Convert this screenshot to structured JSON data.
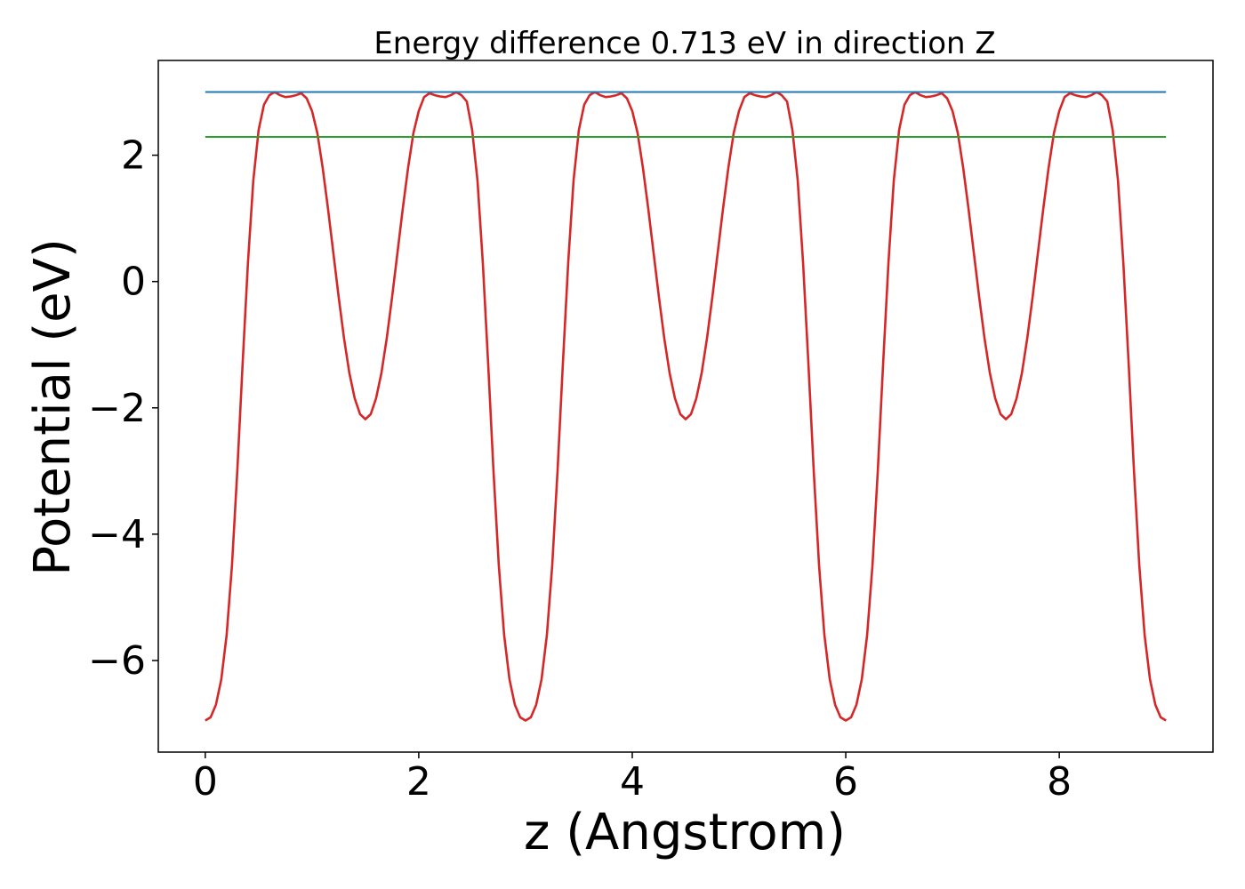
{
  "chart_data": {
    "type": "line",
    "title": "Energy difference 0.713 eV in direction Z",
    "xlabel": "z (Angstrom)",
    "ylabel": "Potential (eV)",
    "xlim": [
      -0.44,
      9.44
    ],
    "ylim": [
      -7.45,
      3.5
    ],
    "xticks": [
      0,
      2,
      4,
      6,
      8
    ],
    "yticks": [
      -6,
      -4,
      -2,
      0,
      2
    ],
    "xtick_labels": [
      "0",
      "2",
      "4",
      "6",
      "8"
    ],
    "ytick_labels": [
      "−6",
      "−4",
      "−2",
      "0",
      "2"
    ],
    "grid": false,
    "legend": "none",
    "series": [
      {
        "color": "#d62728",
        "x": [
          0,
          0.05,
          0.1,
          0.15,
          0.2,
          0.25,
          0.3,
          0.35,
          0.4,
          0.45,
          0.5,
          0.55,
          0.6,
          0.65,
          0.7,
          0.75,
          0.8,
          0.85,
          0.9,
          0.95,
          1.0,
          1.05,
          1.1,
          1.15,
          1.2,
          1.25,
          1.3,
          1.35,
          1.4,
          1.45,
          1.5,
          1.55,
          1.6,
          1.65,
          1.7,
          1.75,
          1.8,
          1.85,
          1.9,
          1.95,
          2.0,
          2.05,
          2.1,
          2.15,
          2.2,
          2.25,
          2.3,
          2.35,
          2.4,
          2.45,
          2.5,
          2.55,
          2.6,
          2.65,
          2.7,
          2.75,
          2.8,
          2.85,
          2.9,
          2.95,
          3.0,
          3.05,
          3.1,
          3.15,
          3.2,
          3.25,
          3.3,
          3.35,
          3.4,
          3.45,
          3.5,
          3.55,
          3.6,
          3.65,
          3.7,
          3.75,
          3.8,
          3.85,
          3.9,
          3.95,
          4.0,
          4.05,
          4.1,
          4.15,
          4.2,
          4.25,
          4.3,
          4.35,
          4.4,
          4.45,
          4.5,
          4.55,
          4.6,
          4.65,
          4.7,
          4.75,
          4.8,
          4.85,
          4.9,
          4.95,
          5.0,
          5.05,
          5.1,
          5.15,
          5.2,
          5.25,
          5.3,
          5.35,
          5.4,
          5.45,
          5.5,
          5.55,
          5.6,
          5.65,
          5.7,
          5.75,
          5.8,
          5.85,
          5.9,
          5.95,
          6.0,
          6.05,
          6.1,
          6.15,
          6.2,
          6.25,
          6.3,
          6.35,
          6.4,
          6.45,
          6.5,
          6.55,
          6.6,
          6.65,
          6.7,
          6.75,
          6.8,
          6.85,
          6.9,
          6.95,
          7.0,
          7.05,
          7.1,
          7.15,
          7.2,
          7.25,
          7.3,
          7.35,
          7.4,
          7.45,
          7.5,
          7.55,
          7.6,
          7.65,
          7.7,
          7.75,
          7.8,
          7.85,
          7.9,
          7.95,
          8.0,
          8.05,
          8.1,
          8.15,
          8.2,
          8.25,
          8.3,
          8.35,
          8.4,
          8.45,
          8.5,
          8.55,
          8.6,
          8.65,
          8.7,
          8.75,
          8.8,
          8.85,
          8.9,
          8.95,
          9.0
        ],
        "values": [
          -6.95,
          -6.9,
          -6.7,
          -6.3,
          -5.6,
          -4.5,
          -3.0,
          -1.3,
          0.3,
          1.6,
          2.4,
          2.8,
          2.95,
          3.0,
          2.95,
          2.92,
          2.93,
          2.95,
          2.98,
          2.9,
          2.7,
          2.35,
          1.8,
          1.15,
          0.45,
          -0.25,
          -0.9,
          -1.45,
          -1.85,
          -2.1,
          -2.18,
          -2.1,
          -1.85,
          -1.45,
          -0.9,
          -0.25,
          0.45,
          1.15,
          1.8,
          2.35,
          2.7,
          2.92,
          2.98,
          2.95,
          2.93,
          2.92,
          2.95,
          3.0,
          2.95,
          2.85,
          2.4,
          1.6,
          0.3,
          -1.3,
          -3.0,
          -4.5,
          -5.6,
          -6.3,
          -6.7,
          -6.9,
          -6.95,
          -6.9,
          -6.7,
          -6.3,
          -5.6,
          -4.5,
          -3.0,
          -1.3,
          0.3,
          1.6,
          2.4,
          2.8,
          2.95,
          3.0,
          2.95,
          2.92,
          2.93,
          2.95,
          2.98,
          2.9,
          2.7,
          2.35,
          1.8,
          1.15,
          0.45,
          -0.25,
          -0.9,
          -1.45,
          -1.85,
          -2.1,
          -2.18,
          -2.1,
          -1.85,
          -1.45,
          -0.9,
          -0.25,
          0.45,
          1.15,
          1.8,
          2.35,
          2.7,
          2.92,
          2.98,
          2.95,
          2.93,
          2.92,
          2.95,
          3.0,
          2.95,
          2.85,
          2.4,
          1.6,
          0.3,
          -1.3,
          -3.0,
          -4.5,
          -5.6,
          -6.3,
          -6.7,
          -6.9,
          -6.95,
          -6.9,
          -6.7,
          -6.3,
          -5.6,
          -4.5,
          -3.0,
          -1.3,
          0.3,
          1.6,
          2.4,
          2.8,
          2.95,
          3.0,
          2.95,
          2.92,
          2.93,
          2.95,
          2.98,
          2.9,
          2.7,
          2.35,
          1.8,
          1.15,
          0.45,
          -0.25,
          -0.9,
          -1.45,
          -1.85,
          -2.1,
          -2.18,
          -2.1,
          -1.85,
          -1.45,
          -0.9,
          -0.25,
          0.45,
          1.15,
          1.8,
          2.35,
          2.7,
          2.92,
          2.98,
          2.95,
          2.93,
          2.92,
          2.95,
          3.0,
          2.95,
          2.85,
          2.4,
          1.6,
          0.3,
          -1.3,
          -3.0,
          -4.5,
          -5.6,
          -6.3,
          -6.7,
          -6.9,
          -6.95
        ]
      },
      {
        "color": "#1f77b4",
        "x": [
          0,
          9
        ],
        "values": [
          3.0,
          3.0
        ]
      },
      {
        "color": "#2ca02c",
        "x": [
          0,
          9
        ],
        "values": [
          2.29,
          2.29
        ]
      }
    ]
  }
}
